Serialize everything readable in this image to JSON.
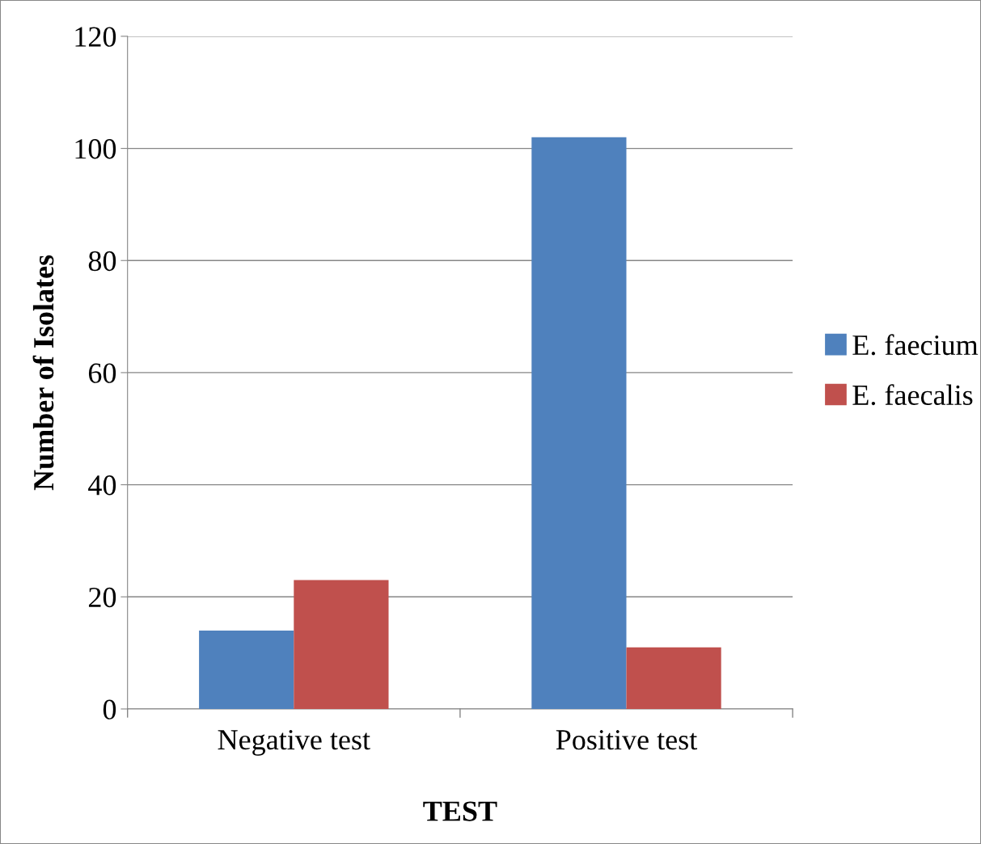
{
  "chart_data": {
    "type": "bar",
    "xlabel": "TEST",
    "ylabel": "Number of Isolates",
    "categories": [
      "Negative test",
      "Positive test"
    ],
    "series": [
      {
        "name": "E. faecium",
        "color": "#4f81bd",
        "values": [
          14,
          102
        ]
      },
      {
        "name": "E. faecalis",
        "color": "#c0504d",
        "values": [
          23,
          11
        ]
      }
    ],
    "ylim": [
      0,
      120
    ],
    "yticks": [
      0,
      20,
      40,
      60,
      80,
      100,
      120
    ],
    "grid": "y",
    "legend": "right"
  }
}
